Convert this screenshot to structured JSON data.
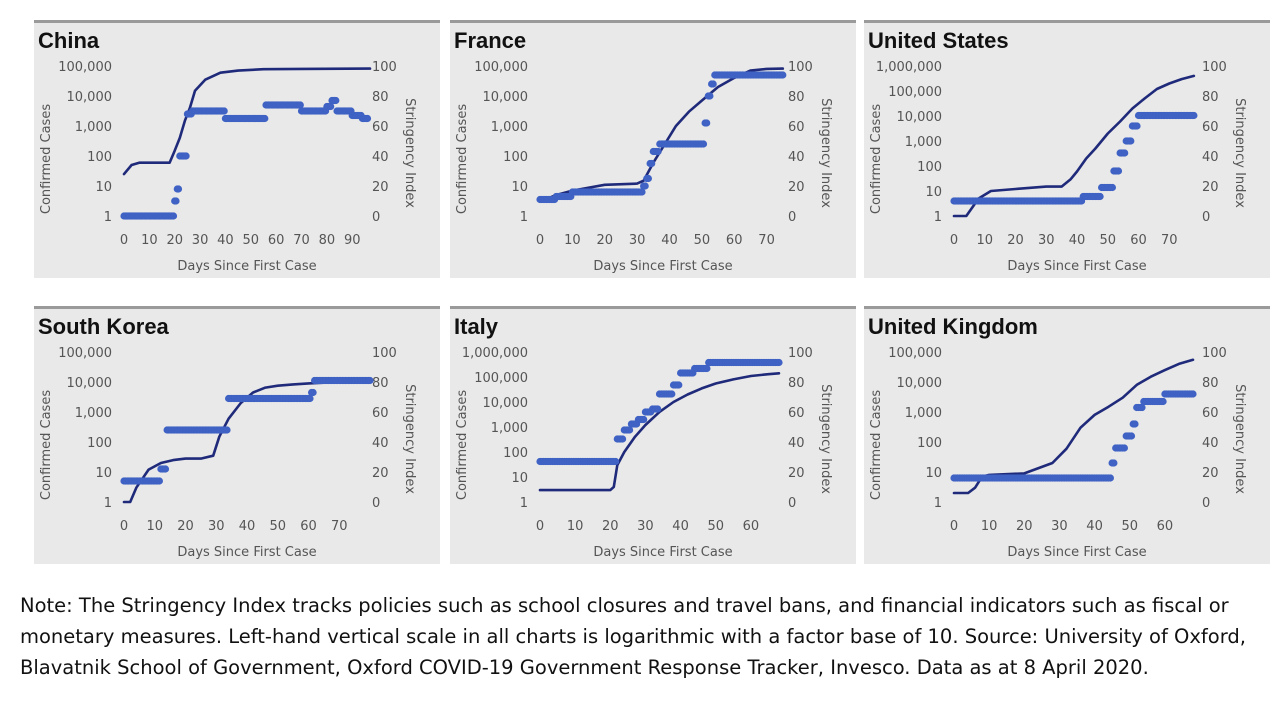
{
  "note": "Note: The Stringency Index tracks policies such as school closures and travel bans, and financial indicators such as fiscal or monetary measures. Left-hand vertical scale in all charts is logarithmic with a factor base of 10. Source: University of Oxford, Blavatnik School of Government, Oxford COVID-19 Government Response Tracker, Invesco. Data as at 8 April 2020.",
  "colors": {
    "cases_line": "#1f2a7a",
    "stringency_points": "#3f62c4",
    "panel_bg": "#e9e9e9",
    "panel_top_rule": "#9a9a9a"
  },
  "chart_data": [
    {
      "type": "line",
      "title": "China",
      "xlabel": "Days Since First Case",
      "ylabel_left": "Confirmed Cases",
      "ylabel_right": "Stringency Index",
      "x_ticks": [
        0,
        10,
        20,
        30,
        40,
        50,
        60,
        70,
        80,
        90
      ],
      "x_range": [
        0,
        97
      ],
      "y_left_ticks": [
        "1",
        "10",
        "100",
        "1,000",
        "10,000",
        "100,000"
      ],
      "y_left_log_range": [
        1,
        100000
      ],
      "y_right_ticks": [
        0,
        20,
        40,
        60,
        80,
        100
      ],
      "y_right_range": [
        0,
        100
      ],
      "series": [
        {
          "axis": "left",
          "style": "line",
          "x": [
            0,
            3,
            6,
            12,
            18,
            20,
            22,
            24,
            26,
            28,
            32,
            38,
            45,
            55,
            70,
            97
          ],
          "y": [
            25,
            50,
            60,
            60,
            60,
            150,
            400,
            1500,
            4000,
            15000,
            35000,
            60000,
            70000,
            78000,
            80000,
            82000
          ]
        },
        {
          "axis": "right",
          "style": "points",
          "x": [
            0,
            18,
            20,
            21,
            22,
            23,
            24,
            25,
            27,
            30,
            35,
            40,
            50,
            56,
            60,
            70,
            78,
            80,
            82,
            84,
            86,
            88,
            90,
            92,
            94,
            96
          ],
          "y": [
            0,
            0,
            10,
            18,
            40,
            40,
            40,
            68,
            70,
            70,
            70,
            65,
            65,
            74,
            74,
            70,
            70,
            73,
            77,
            70,
            70,
            70,
            67,
            67,
            65,
            65
          ]
        }
      ]
    },
    {
      "type": "line",
      "title": "France",
      "xlabel": "Days Since First Case",
      "ylabel_left": "Confirmed Cases",
      "ylabel_right": "Stringency Index",
      "x_ticks": [
        0,
        10,
        20,
        30,
        40,
        50,
        60,
        70
      ],
      "x_range": [
        0,
        76
      ],
      "y_left_ticks": [
        "1",
        "10",
        "100",
        "1,000",
        "10,000",
        "100,000"
      ],
      "y_left_log_range": [
        1,
        100000
      ],
      "y_right_ticks": [
        0,
        20,
        40,
        60,
        80,
        100
      ],
      "y_right_range": [
        0,
        100
      ],
      "series": [
        {
          "axis": "left",
          "style": "line",
          "x": [
            0,
            5,
            10,
            20,
            30,
            32,
            35,
            38,
            42,
            46,
            50,
            55,
            60,
            65,
            70,
            75
          ],
          "y": [
            3,
            5,
            7,
            11,
            12,
            15,
            60,
            200,
            1000,
            3000,
            7000,
            20000,
            40000,
            70000,
            80000,
            82000
          ]
        },
        {
          "axis": "right",
          "style": "points",
          "x": [
            0,
            5,
            10,
            20,
            30,
            32,
            33,
            34,
            35,
            36,
            37,
            38,
            40,
            45,
            50,
            51,
            52,
            53,
            54,
            60,
            70,
            75
          ],
          "y": [
            11,
            13,
            16,
            16,
            16,
            20,
            25,
            35,
            43,
            43,
            48,
            48,
            48,
            48,
            48,
            62,
            80,
            88,
            94,
            94,
            94,
            94
          ]
        }
      ]
    },
    {
      "type": "line",
      "title": "United States",
      "xlabel": "Days Since First Case",
      "ylabel_left": "Confirmed Cases",
      "ylabel_right": "Stringency Index",
      "x_ticks": [
        0,
        10,
        20,
        30,
        40,
        50,
        60,
        70
      ],
      "x_range": [
        0,
        80
      ],
      "y_left_ticks": [
        "1",
        "10",
        "100",
        "1,000",
        "10,000",
        "100,000",
        "1,000,000"
      ],
      "y_left_log_range": [
        1,
        1000000
      ],
      "y_right_ticks": [
        0,
        20,
        40,
        60,
        80,
        100
      ],
      "y_right_range": [
        0,
        100
      ],
      "series": [
        {
          "axis": "left",
          "style": "line",
          "x": [
            0,
            4,
            8,
            12,
            20,
            30,
            35,
            38,
            40,
            43,
            46,
            50,
            54,
            58,
            62,
            66,
            70,
            74,
            78
          ],
          "y": [
            1,
            1,
            5,
            10,
            12,
            15,
            15,
            30,
            60,
            200,
            500,
            2000,
            6000,
            20000,
            50000,
            120000,
            200000,
            300000,
            400000
          ]
        },
        {
          "axis": "right",
          "style": "points",
          "x": [
            0,
            2,
            10,
            20,
            30,
            40,
            42,
            46,
            48,
            50,
            52,
            54,
            56,
            58,
            60,
            70,
            78
          ],
          "y": [
            10,
            10,
            10,
            10,
            10,
            10,
            13,
            13,
            19,
            19,
            30,
            42,
            50,
            60,
            67,
            67,
            67
          ]
        }
      ]
    },
    {
      "type": "line",
      "title": "South Korea",
      "xlabel": "Days Since First Case",
      "ylabel_left": "Confirmed Cases",
      "ylabel_right": "Stringency Index",
      "x_ticks": [
        0,
        10,
        20,
        30,
        40,
        50,
        60,
        70
      ],
      "x_range": [
        0,
        80
      ],
      "y_left_ticks": [
        "1",
        "10",
        "100",
        "1,000",
        "10,000",
        "100,000"
      ],
      "y_left_log_range": [
        1,
        100000
      ],
      "y_right_ticks": [
        0,
        20,
        40,
        60,
        80,
        100
      ],
      "y_right_range": [
        0,
        100
      ],
      "series": [
        {
          "axis": "left",
          "style": "line",
          "x": [
            0,
            2,
            4,
            8,
            12,
            16,
            20,
            25,
            29,
            31,
            34,
            38,
            42,
            46,
            50,
            55,
            60,
            65,
            70,
            78
          ],
          "y": [
            1,
            1,
            3,
            12,
            20,
            25,
            28,
            28,
            35,
            150,
            600,
            2000,
            4500,
            6500,
            7500,
            8300,
            9000,
            9500,
            10000,
            10300
          ]
        },
        {
          "axis": "right",
          "style": "points",
          "x": [
            0,
            5,
            10,
            12,
            13,
            14,
            20,
            25,
            30,
            33,
            34,
            40,
            50,
            60,
            61,
            62,
            70,
            80
          ],
          "y": [
            14,
            14,
            14,
            22,
            22,
            48,
            48,
            48,
            48,
            48,
            69,
            69,
            69,
            69,
            73,
            81,
            81,
            81
          ]
        }
      ]
    },
    {
      "type": "line",
      "title": "Italy",
      "xlabel": "Days Since First Case",
      "ylabel_left": "Confirmed Cases",
      "ylabel_right": "Stringency Index",
      "x_ticks": [
        0,
        10,
        20,
        30,
        40,
        50,
        60
      ],
      "x_range": [
        0,
        70
      ],
      "y_left_ticks": [
        "1",
        "10",
        "100",
        "1,000",
        "10,000",
        "100,000",
        "1,000,000"
      ],
      "y_left_log_range": [
        1,
        1000000
      ],
      "y_right_ticks": [
        0,
        20,
        40,
        60,
        80,
        100
      ],
      "y_right_range": [
        0,
        100
      ],
      "series": [
        {
          "axis": "left",
          "style": "line",
          "x": [
            0,
            10,
            20,
            21,
            22,
            24,
            27,
            30,
            34,
            38,
            42,
            46,
            50,
            55,
            60,
            65,
            68
          ],
          "y": [
            3,
            3,
            3,
            4,
            30,
            100,
            400,
            1200,
            4000,
            10000,
            20000,
            35000,
            55000,
            80000,
            110000,
            130000,
            140000
          ]
        },
        {
          "axis": "right",
          "style": "points",
          "x": [
            0,
            10,
            20,
            22,
            24,
            26,
            28,
            30,
            32,
            34,
            36,
            38,
            40,
            42,
            44,
            46,
            48,
            50,
            60,
            68
          ],
          "y": [
            27,
            27,
            27,
            42,
            48,
            52,
            55,
            60,
            62,
            72,
            72,
            78,
            86,
            86,
            89,
            89,
            93,
            93,
            93,
            93
          ]
        }
      ]
    },
    {
      "type": "line",
      "title": "United Kingdom",
      "xlabel": "Days Since First Case",
      "ylabel_left": "Confirmed Cases",
      "ylabel_right": "Stringency Index",
      "x_ticks": [
        0,
        10,
        20,
        30,
        40,
        50,
        60
      ],
      "x_range": [
        0,
        70
      ],
      "y_left_ticks": [
        "1",
        "10",
        "100",
        "1,000",
        "10,000",
        "100,000"
      ],
      "y_left_log_range": [
        1,
        100000
      ],
      "y_right_ticks": [
        0,
        20,
        40,
        60,
        80,
        100
      ],
      "y_right_range": [
        0,
        100
      ],
      "series": [
        {
          "axis": "left",
          "style": "line",
          "x": [
            0,
            4,
            6,
            8,
            10,
            20,
            28,
            32,
            36,
            40,
            44,
            48,
            52,
            56,
            60,
            64,
            68
          ],
          "y": [
            2,
            2,
            3,
            7,
            8,
            9,
            20,
            60,
            300,
            800,
            1500,
            3000,
            8000,
            15000,
            25000,
            40000,
            55000
          ]
        },
        {
          "axis": "right",
          "style": "points",
          "x": [
            0,
            10,
            20,
            30,
            40,
            44,
            45,
            46,
            48,
            49,
            50,
            51,
            52,
            53,
            54,
            56,
            58,
            60,
            62,
            68
          ],
          "y": [
            16,
            16,
            16,
            16,
            16,
            16,
            26,
            36,
            36,
            44,
            44,
            52,
            63,
            63,
            67,
            67,
            67,
            72,
            72,
            72
          ]
        }
      ]
    }
  ]
}
